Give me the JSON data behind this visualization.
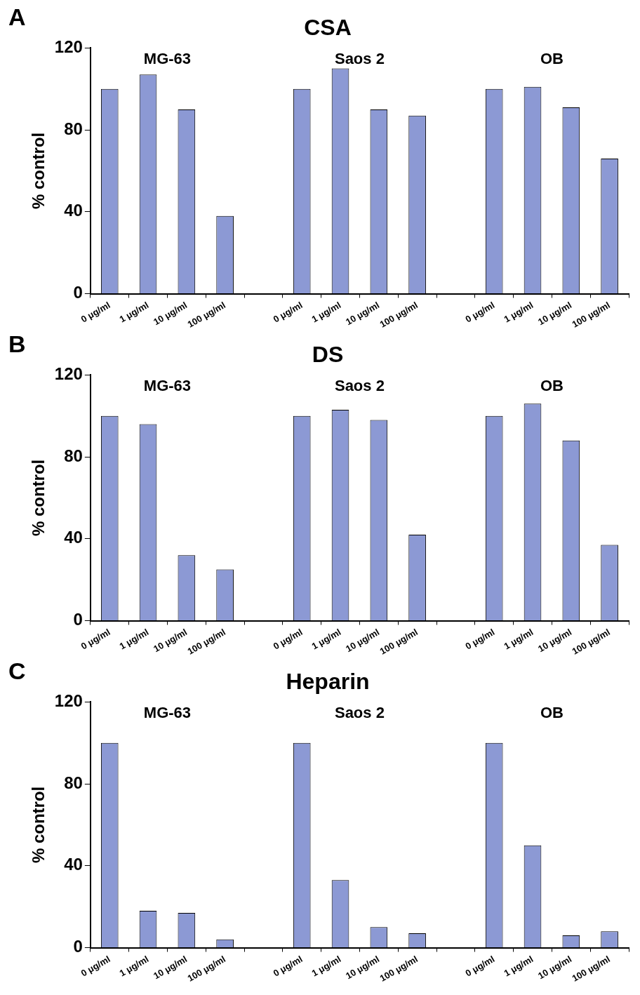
{
  "chart_data": [
    {
      "type": "bar",
      "title": "CSA",
      "ylabel": "% control",
      "annotations": [
        "A",
        "MG-63",
        "Saos 2",
        "OB"
      ],
      "categories": [
        "0 μg/ml",
        "1 μg/ml",
        "10 μg/ml",
        "100 μg/ml",
        null,
        "0 μg/ml",
        "1 μg/ml",
        "10 μg/ml",
        "100 μg/ml",
        null,
        "0 μg/ml",
        "1 μg/ml",
        "10 μg/ml",
        "100 μg/ml"
      ],
      "values": [
        100,
        107,
        90,
        38,
        null,
        100,
        110,
        90,
        87,
        null,
        100,
        101,
        91,
        66
      ],
      "color": "#8c99d4",
      "ylim": [
        0,
        120
      ],
      "yticks": [
        0,
        40,
        80,
        120
      ],
      "grid": false,
      "legend": false
    },
    {
      "type": "bar",
      "title": "DS",
      "ylabel": "% control",
      "annotations": [
        "B",
        "MG-63",
        "Saos 2",
        "OB"
      ],
      "categories": [
        "0 μg/ml",
        "1 μg/ml",
        "10 μg/ml",
        "100 μg/ml",
        null,
        "0 μg/ml",
        "1 μg/ml",
        "10 μg/ml",
        "100 μg/ml",
        null,
        "0 μg/ml",
        "1 μg/ml",
        "10 μg/ml",
        "100 μg/ml"
      ],
      "values": [
        100,
        96,
        32,
        25,
        null,
        100,
        103,
        98,
        42,
        null,
        100,
        106,
        88,
        37
      ],
      "color": "#8c99d4",
      "ylim": [
        0,
        120
      ],
      "yticks": [
        0,
        40,
        80,
        120
      ],
      "grid": false,
      "legend": false
    },
    {
      "type": "bar",
      "title": "Heparin",
      "ylabel": "% control",
      "annotations": [
        "C",
        "MG-63",
        "Saos 2",
        "OB"
      ],
      "categories": [
        "0 μg/ml",
        "1 μg/ml",
        "10 μg/ml",
        "100 μg/ml",
        null,
        "0 μg/ml",
        "1 μg/ml",
        "10 μg/ml",
        "100 μg/ml",
        null,
        "0 μg/ml",
        "1 μg/ml",
        "10 μg/ml",
        "100 μg/ml"
      ],
      "values": [
        100,
        18,
        17,
        4,
        null,
        100,
        33,
        10,
        7,
        null,
        100,
        50,
        6,
        8
      ],
      "color": "#8c99d4",
      "ylim": [
        0,
        120
      ],
      "yticks": [
        0,
        40,
        80,
        120
      ],
      "grid": false,
      "legend": false
    }
  ]
}
